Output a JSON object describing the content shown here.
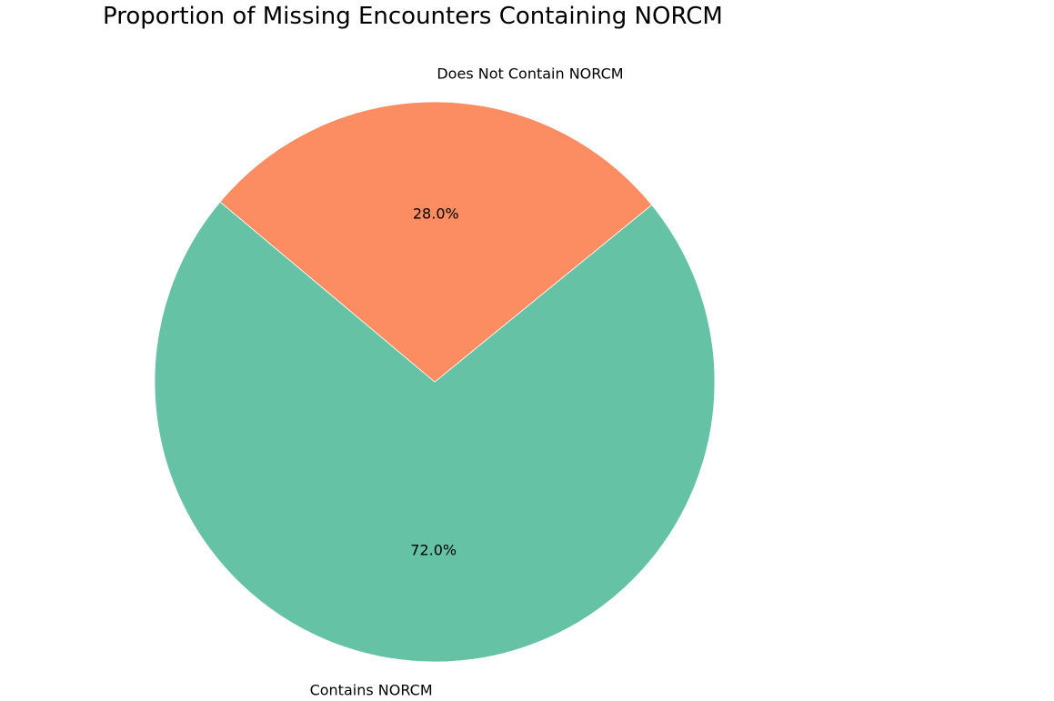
{
  "chart_data": {
    "type": "pie",
    "title": "Proportion of Missing Encounters Containing NORCM",
    "labels": [
      "Contains NORCM",
      "Does Not Contain NORCM"
    ],
    "values": [
      72.0,
      28.0
    ],
    "percent_labels": [
      "72.0%",
      "28.0%"
    ],
    "colors": [
      "#66c2a5",
      "#fc8d62"
    ]
  }
}
